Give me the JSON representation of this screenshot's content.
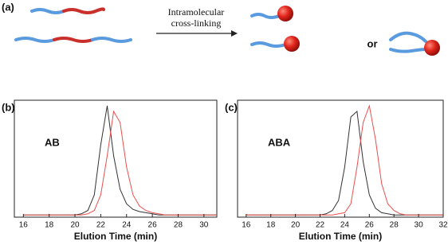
{
  "scheme": {
    "panel_label": "(a)",
    "arrow_label_line1": "Intramolecular",
    "arrow_label_line2": "cross-linking",
    "or_label": "or"
  },
  "chart_data": [
    {
      "type": "line",
      "panel_label": "(b)",
      "annotation": "AB",
      "x_label": "Elution Time (min)",
      "x": [
        16,
        16.5,
        17,
        17.5,
        18,
        18.5,
        19,
        19.5,
        20,
        20.5,
        21,
        21.5,
        22,
        22.5,
        23,
        23.5,
        24,
        24.5,
        25,
        25.5,
        26,
        26.5,
        27,
        27.5,
        28,
        28.5,
        29,
        29.5,
        30,
        30.5,
        31
      ],
      "series": [
        {
          "color": "#333333",
          "values": [
            0.02,
            0.02,
            0.02,
            0.02,
            0.02,
            0.02,
            0.02,
            0.02,
            0.02,
            0.03,
            0.06,
            0.2,
            0.65,
            1.0,
            0.55,
            0.25,
            0.12,
            0.07,
            0.05,
            0.04,
            0.03,
            0.02,
            0.02,
            0.02,
            0.02,
            0.02,
            0.02,
            0.02,
            0.02,
            0.02,
            0.02
          ]
        },
        {
          "color": "#e8504f",
          "values": [
            0.02,
            0.02,
            0.02,
            0.02,
            0.02,
            0.02,
            0.02,
            0.02,
            0.02,
            0.02,
            0.03,
            0.06,
            0.2,
            0.55,
            0.95,
            0.85,
            0.45,
            0.2,
            0.1,
            0.06,
            0.04,
            0.03,
            0.02,
            0.02,
            0.02,
            0.02,
            0.02,
            0.02,
            0.02,
            0.02,
            0.02
          ]
        }
      ],
      "xlim": [
        15.3,
        31
      ],
      "xticks": [
        16,
        18,
        20,
        22,
        24,
        26,
        28,
        30
      ],
      "ylim": [
        0,
        1.05
      ]
    },
    {
      "type": "line",
      "panel_label": "(c)",
      "annotation": "ABA",
      "x_label": "Elution Time (min)",
      "x": [
        16,
        16.5,
        17,
        17.5,
        18,
        18.5,
        19,
        19.5,
        20,
        20.5,
        21,
        21.5,
        22,
        22.5,
        23,
        23.5,
        24,
        24.5,
        25,
        25.5,
        26,
        26.5,
        27,
        27.5,
        28,
        28.5,
        29,
        29.5,
        30,
        30.5,
        31,
        31.5,
        32
      ],
      "series": [
        {
          "color": "#333333",
          "values": [
            0.02,
            0.02,
            0.02,
            0.02,
            0.02,
            0.02,
            0.02,
            0.02,
            0.02,
            0.02,
            0.02,
            0.02,
            0.02,
            0.03,
            0.06,
            0.15,
            0.45,
            0.9,
            0.95,
            0.5,
            0.2,
            0.08,
            0.04,
            0.03,
            0.02,
            0.02,
            0.02,
            0.02,
            0.02,
            0.02,
            0.02,
            0.02,
            0.02
          ]
        },
        {
          "color": "#e8504f",
          "values": [
            0.02,
            0.02,
            0.02,
            0.02,
            0.02,
            0.02,
            0.02,
            0.02,
            0.02,
            0.02,
            0.02,
            0.02,
            0.02,
            0.02,
            0.02,
            0.03,
            0.04,
            0.12,
            0.45,
            0.85,
            1.0,
            0.7,
            0.3,
            0.12,
            0.06,
            0.03,
            0.02,
            0.02,
            0.02,
            0.02,
            0.02,
            0.02,
            0.02
          ]
        }
      ],
      "xlim": [
        15.3,
        32
      ],
      "xticks": [
        16,
        18,
        20,
        22,
        24,
        26,
        28,
        30,
        32
      ],
      "ylim": [
        0,
        1.05
      ]
    }
  ]
}
